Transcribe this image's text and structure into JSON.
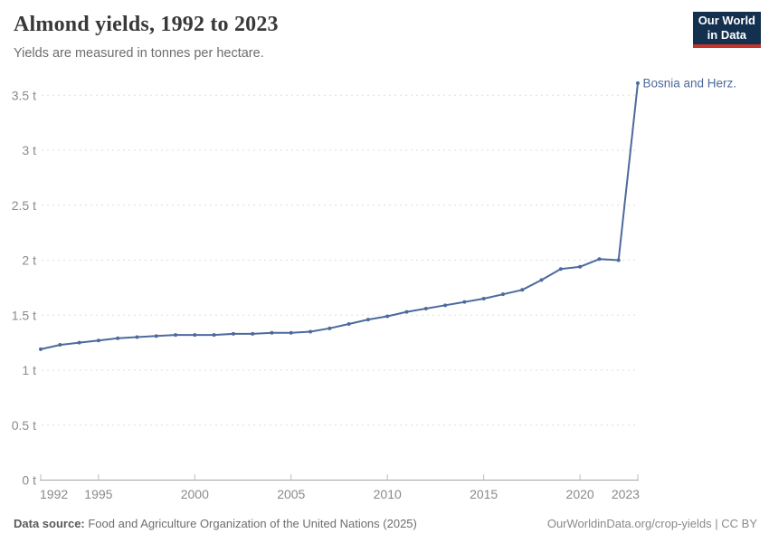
{
  "header": {
    "title": "Almond yields, 1992 to 2023",
    "subtitle": "Yields are measured in tonnes per hectare."
  },
  "logo": {
    "line1": "Our World",
    "line2": "in Data",
    "bg_color": "#13304f",
    "bar_color": "#c5332b"
  },
  "chart_data": {
    "type": "line",
    "title": "Almond yields, 1992 to 2023",
    "ylabel": "tonnes per hectare",
    "unit": " t",
    "x": [
      1992,
      1993,
      1994,
      1995,
      1996,
      1997,
      1998,
      1999,
      2000,
      2001,
      2002,
      2003,
      2004,
      2005,
      2006,
      2007,
      2008,
      2009,
      2010,
      2011,
      2012,
      2013,
      2014,
      2015,
      2016,
      2017,
      2018,
      2019,
      2020,
      2021,
      2022,
      2023
    ],
    "series": [
      {
        "name": "Bosnia and Herz.",
        "color": "#4c6a9c",
        "values": [
          1.19,
          1.23,
          1.25,
          1.27,
          1.29,
          1.3,
          1.31,
          1.32,
          1.32,
          1.32,
          1.33,
          1.33,
          1.34,
          1.34,
          1.35,
          1.38,
          1.42,
          1.46,
          1.49,
          1.53,
          1.56,
          1.59,
          1.62,
          1.65,
          1.69,
          1.73,
          1.82,
          1.92,
          1.94,
          2.01,
          2.0,
          3.61
        ]
      }
    ],
    "xlim": [
      1992,
      2023
    ],
    "ylim": [
      0,
      3.5
    ],
    "xticks": [
      1992,
      1995,
      2000,
      2005,
      2010,
      2015,
      2020,
      2023
    ],
    "xtick_labels": [
      "1992",
      "1995",
      "2000",
      "2005",
      "2010",
      "2015",
      "2020",
      "2023"
    ],
    "yticks": [
      0,
      0.5,
      1,
      1.5,
      2,
      2.5,
      3,
      3.5
    ],
    "ytick_labels": [
      "0 t",
      "0.5 t",
      "1 t",
      "1.5 t",
      "2 t",
      "2.5 t",
      "3 t",
      "3.5 t"
    ],
    "grid": "horizontal-dashed",
    "legend_position": "end-of-line-label",
    "colors": {
      "gridline": "#dedede",
      "axis": "#a3a3a3",
      "tick_text": "#8a8a8a"
    }
  },
  "footer": {
    "source_label": "Data source:",
    "source_text": " Food and Agriculture Organization of the United Nations (2025)",
    "attribution": "OurWorldinData.org/crop-yields | CC BY"
  }
}
